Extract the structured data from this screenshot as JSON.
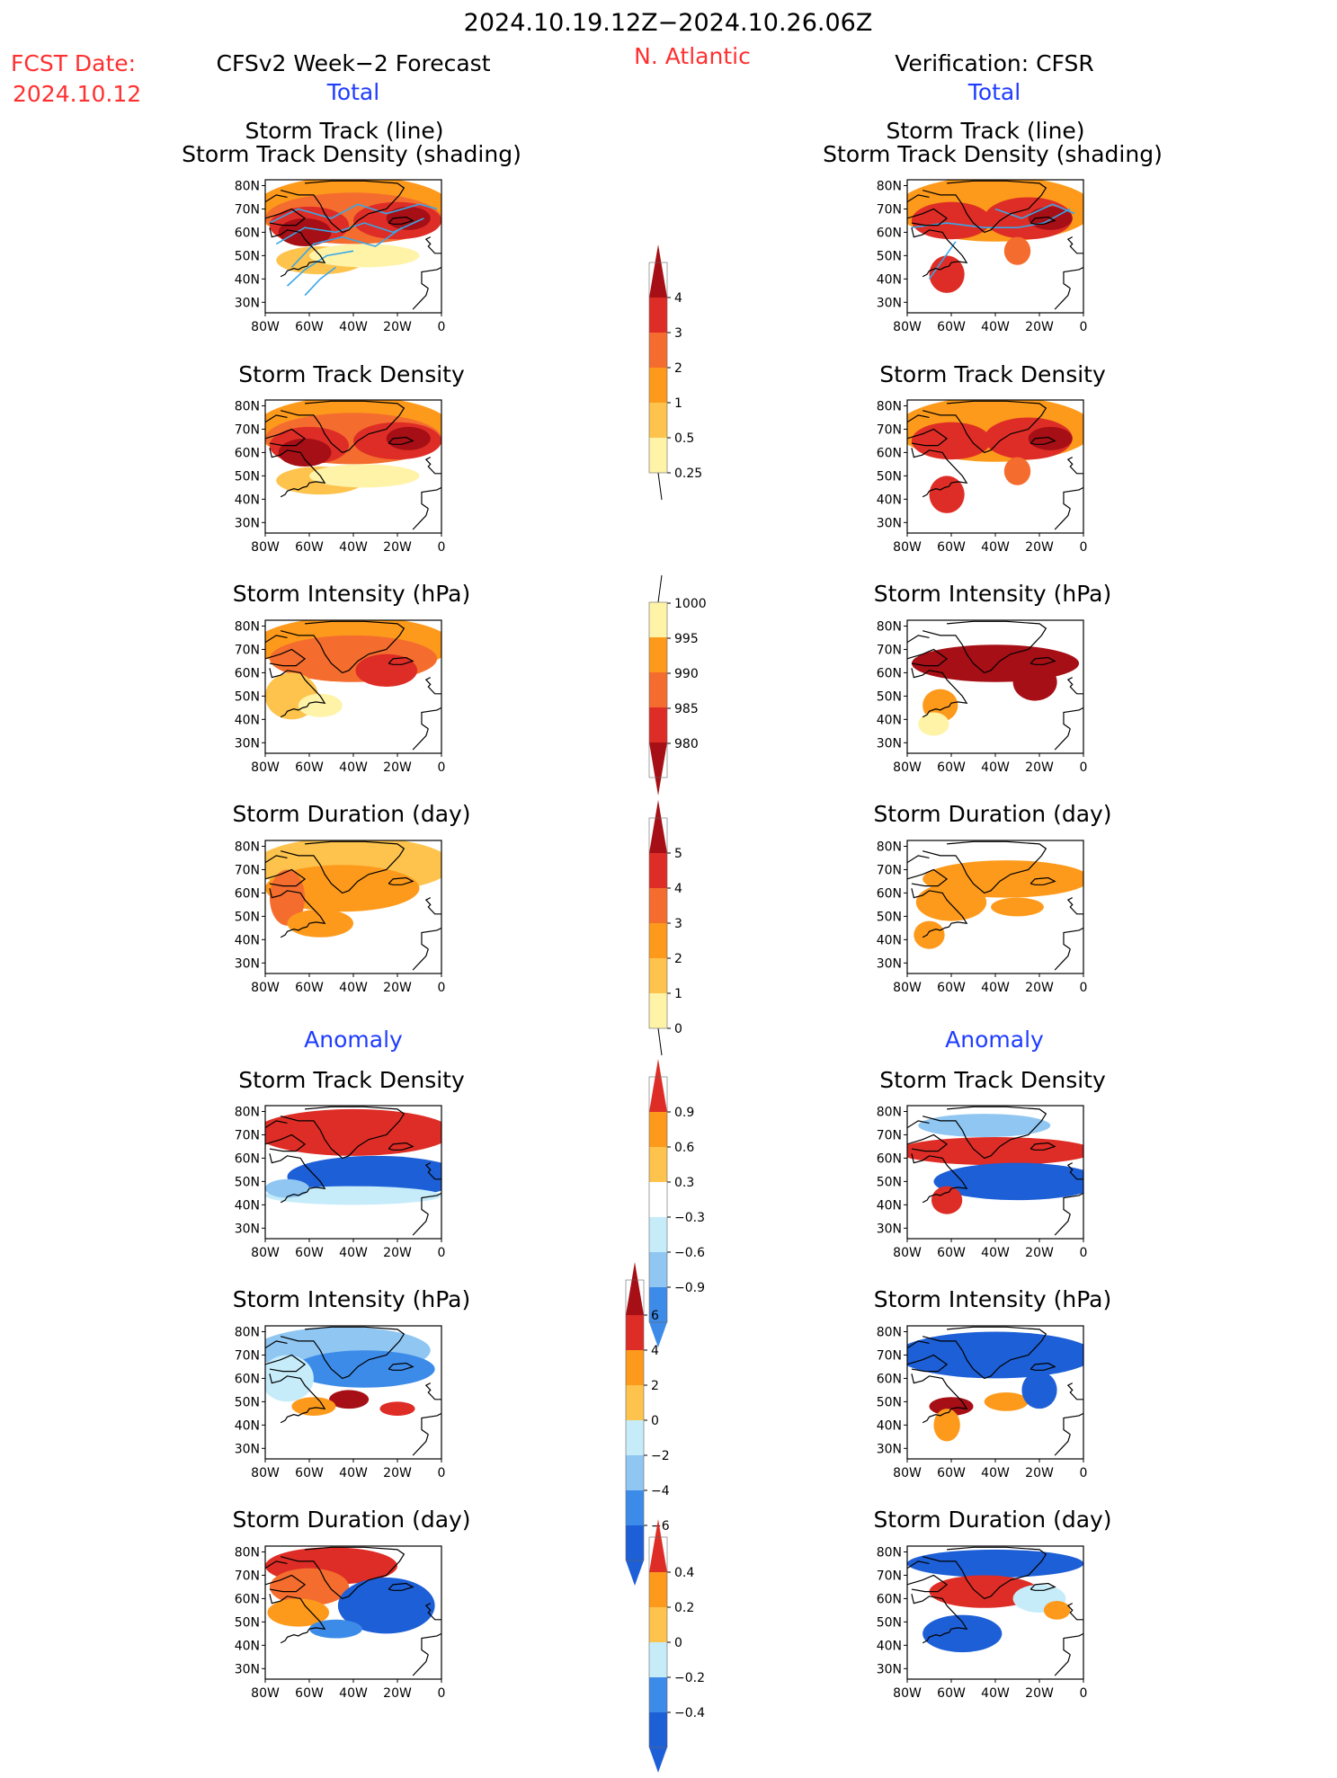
{
  "header": {
    "date_range": "2024.10.19.12Z−2024.10.26.06Z",
    "region": "N. Atlantic",
    "fcst_label": "FCST Date:",
    "fcst_date": "2024.10.12",
    "left_title": "CFSv2 Week−2 Forecast",
    "right_title": "Verification: CFSR",
    "left_total": "Total",
    "right_total": "Total",
    "left_anomaly": "Anomaly",
    "right_anomaly": "Anomaly"
  },
  "panel_titles": {
    "track_line": "Storm Track (line)",
    "track_shading": "Storm Track Density (shading)",
    "density": "Storm Track Density",
    "intensity": "Storm Intensity (hPa)",
    "duration": "Storm Duration (day)"
  },
  "axes": {
    "lat_labels": [
      "80N",
      "70N",
      "60N",
      "50N",
      "40N",
      "30N"
    ],
    "lon_labels": [
      "80W",
      "60W",
      "40W",
      "20W",
      "0"
    ]
  },
  "colorbars": {
    "density_total": [
      "4",
      "3",
      "2",
      "1",
      "0.5",
      "0.25"
    ],
    "intensity_total": [
      "1000",
      "995",
      "990",
      "985",
      "980"
    ],
    "duration_total": [
      "5",
      "4",
      "3",
      "2",
      "1",
      "0"
    ],
    "density_anom": [
      "0.9",
      "0.6",
      "0.3",
      "−0.3",
      "−0.6",
      "−0.9"
    ],
    "intensity_anom": [
      "6",
      "4",
      "2",
      "0",
      "−2",
      "−4",
      "−6"
    ],
    "duration_anom": [
      "0.4",
      "0.2",
      "0",
      "−0.2",
      "−0.4"
    ]
  },
  "colors": {
    "title_red": "#ff3030",
    "title_blue": "#1f3cff",
    "darkred": "#a50f15",
    "red": "#de2d26",
    "orange_red": "#f46d2e",
    "orange": "#fd9a1b",
    "light_orange": "#fdc34d",
    "pale_yellow": "#fff3a8",
    "pale_blue": "#c6ecfa",
    "light_blue": "#8fc6f2",
    "mid_blue": "#3d8be8",
    "blue": "#1d5fd6",
    "track_line": "#39a6e8"
  }
}
